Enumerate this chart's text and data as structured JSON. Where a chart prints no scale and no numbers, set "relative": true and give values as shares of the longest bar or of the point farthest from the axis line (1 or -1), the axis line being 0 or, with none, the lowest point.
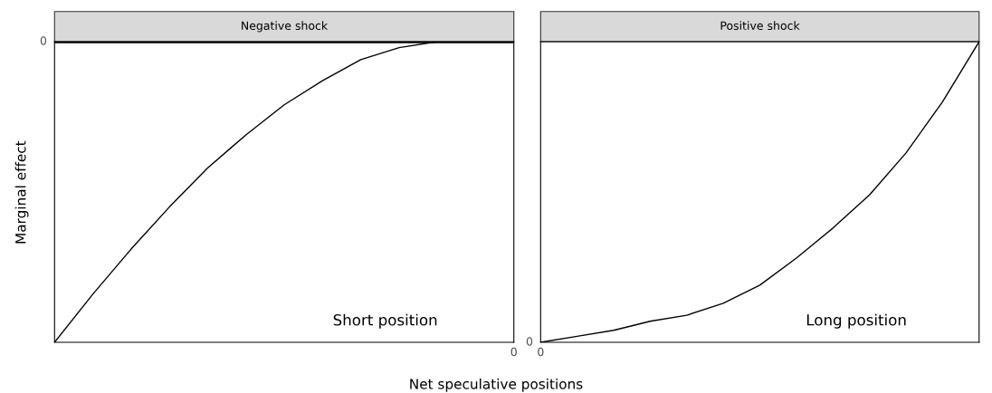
{
  "chart_data": [
    {
      "type": "line",
      "title": "Negative shock",
      "ylabel": "Marginal effect",
      "xlabel": "Net speculative positions",
      "relative": true,
      "categories": [
        null,
        null,
        null,
        null,
        null,
        null,
        null,
        null,
        null,
        null,
        null,
        null,
        null
      ],
      "series": [
        {
          "color": "#000000",
          "values": [
            -1,
            -0.84,
            -0.69,
            -0.55,
            -0.42,
            -0.31,
            -0.21,
            -0.13,
            -0.06,
            -0.02,
            0,
            0,
            0
          ]
        }
      ],
      "ref_lines": [
        {
          "axis": "y",
          "value": 0,
          "color": "#000000"
        }
      ],
      "annotations": [
        "Short position",
        "0",
        "0"
      ],
      "legend": false
    },
    {
      "type": "line",
      "title": "Positive shock",
      "relative": true,
      "categories": [
        null,
        null,
        null,
        null,
        null,
        null,
        null,
        null,
        null,
        null,
        null,
        null,
        null
      ],
      "series": [
        {
          "color": "#000000",
          "values": [
            0,
            0.02,
            0.04,
            0.07,
            0.09,
            0.13,
            0.19,
            0.28,
            0.38,
            0.49,
            0.63,
            0.8,
            1
          ]
        }
      ],
      "annotations": [
        "Long position",
        "0",
        "0"
      ],
      "legend": false
    }
  ]
}
